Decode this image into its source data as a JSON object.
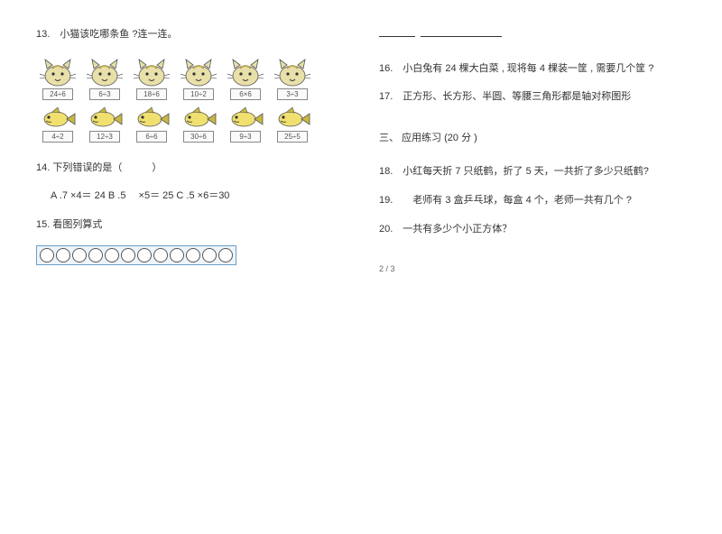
{
  "left": {
    "q13": "13.　小猫该吃哪条鱼 ?连一连。",
    "cats": [
      {
        "expr": "24÷6"
      },
      {
        "expr": "6÷3"
      },
      {
        "expr": "18÷6"
      },
      {
        "expr": "10÷2"
      },
      {
        "expr": "6×6"
      },
      {
        "expr": "3÷3"
      }
    ],
    "fish": [
      {
        "expr": "4÷2"
      },
      {
        "expr": "12÷3"
      },
      {
        "expr": "6÷6"
      },
      {
        "expr": "30÷6"
      },
      {
        "expr": "9÷3"
      },
      {
        "expr": "25÷5"
      }
    ],
    "q14": "14. 下列错误的是（　　　）",
    "q14_opts": "A .7 ×4＝ 24  B .5 　×5＝ 25  C .5 ×6＝30",
    "q15": "15. 看图列算式",
    "circle_count": 12,
    "cat_colors": {
      "body": "#e8e0a8",
      "stripe": "#b8a858",
      "outline": "#555"
    },
    "fish_colors": {
      "body": "#f0e070",
      "fin": "#c8b840",
      "outline": "#555"
    }
  },
  "right": {
    "q16": "16.　小白兔有 24 棵大白菜 , 现将每 4 棵装一筐 , 需要几个筐 ?",
    "q17": "17.　正方形、长方形、半圆、等腰三角形都是轴对称图形",
    "section3": "三、 应用练习   (20 分 )",
    "q18": "18.　小红每天折 7 只纸鹤，折了  5 天，一共折了多少只纸鹤?",
    "q19": "19.　　老师有 3 盒乒乓球，每盒  4 个，老师一共有几个  ?",
    "q20": "20.　一共有多少个小正方体？",
    "pagenum": "2 / 3"
  }
}
